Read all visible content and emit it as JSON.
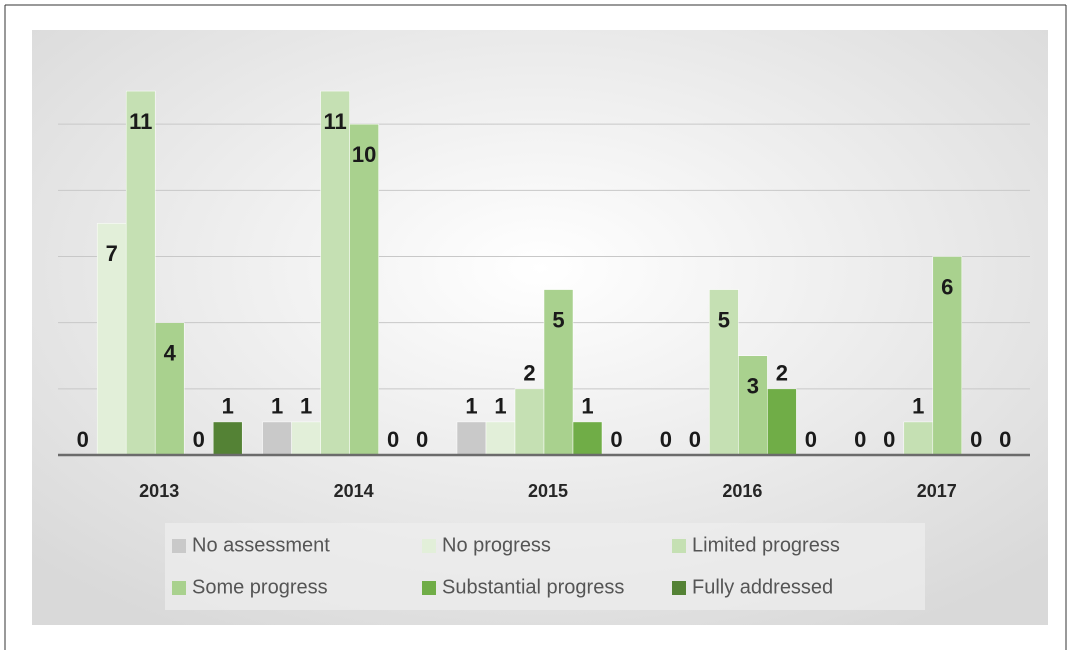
{
  "chart_data": {
    "type": "bar",
    "categories": [
      "2013",
      "2014",
      "2015",
      "2016",
      "2017"
    ],
    "series": [
      {
        "name": "No assessment",
        "color": "#c9c9c9",
        "values": [
          0,
          1,
          1,
          0,
          0
        ]
      },
      {
        "name": "No progress",
        "color": "#e2efd9",
        "values": [
          7,
          1,
          1,
          0,
          0
        ]
      },
      {
        "name": "Limited progress",
        "color": "#c5e0b3",
        "values": [
          11,
          11,
          2,
          5,
          1
        ]
      },
      {
        "name": "Some progress",
        "color": "#a9d18e",
        "values": [
          4,
          10,
          5,
          3,
          6
        ]
      },
      {
        "name": "Substantial progress",
        "color": "#70ad47",
        "values": [
          0,
          0,
          1,
          2,
          0
        ]
      },
      {
        "name": "Fully addressed",
        "color": "#548235",
        "values": [
          1,
          0,
          0,
          0,
          0
        ]
      }
    ],
    "ylim": [
      0,
      12
    ],
    "yticks": [
      0,
      2,
      4,
      6,
      8,
      10
    ],
    "grid": true
  }
}
